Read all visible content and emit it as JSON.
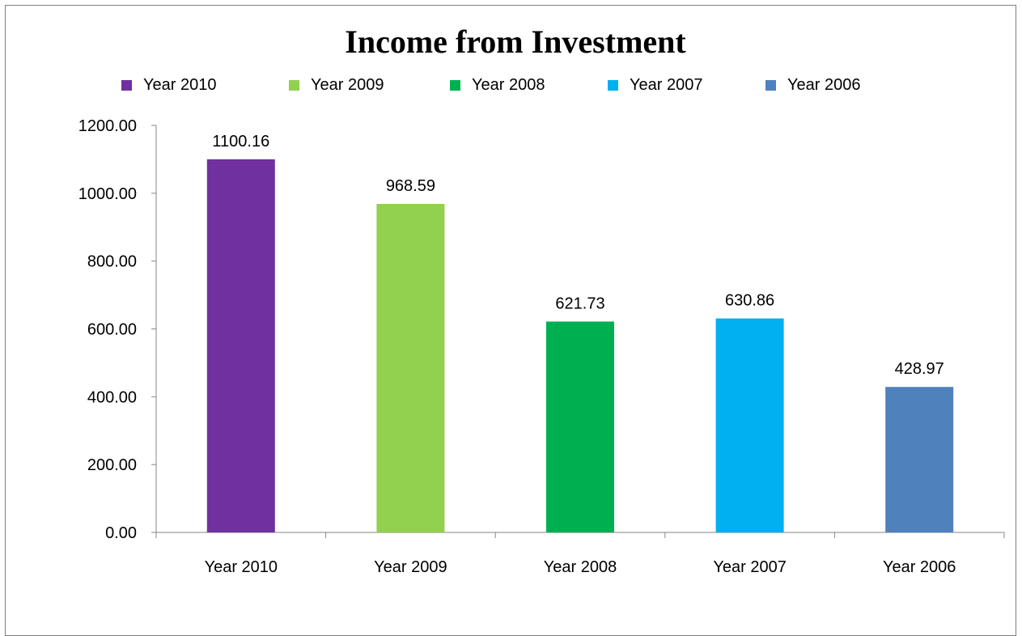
{
  "chart_data": {
    "type": "bar",
    "title": "Income from Investment",
    "categories": [
      "Year 2010",
      "Year 2009",
      "Year 2008",
      "Year 2007",
      "Year 2006"
    ],
    "values": [
      1100.16,
      968.59,
      621.73,
      630.86,
      428.97
    ],
    "data_labels": [
      "1100.16",
      "968.59",
      "621.73",
      "630.86",
      "428.97"
    ],
    "colors": [
      "#7030A0",
      "#92D050",
      "#00B050",
      "#00B0F0",
      "#4F81BD"
    ],
    "yticks": [
      "0.00",
      "200.00",
      "400.00",
      "600.00",
      "800.00",
      "1000.00",
      "1200.00"
    ],
    "ylim": [
      0,
      1200
    ],
    "legend": [
      "Year 2010",
      "Year 2009",
      "Year 2008",
      "Year 2007",
      "Year 2006"
    ],
    "legend_position": "top",
    "grid": false,
    "xlabel": "",
    "ylabel": ""
  }
}
